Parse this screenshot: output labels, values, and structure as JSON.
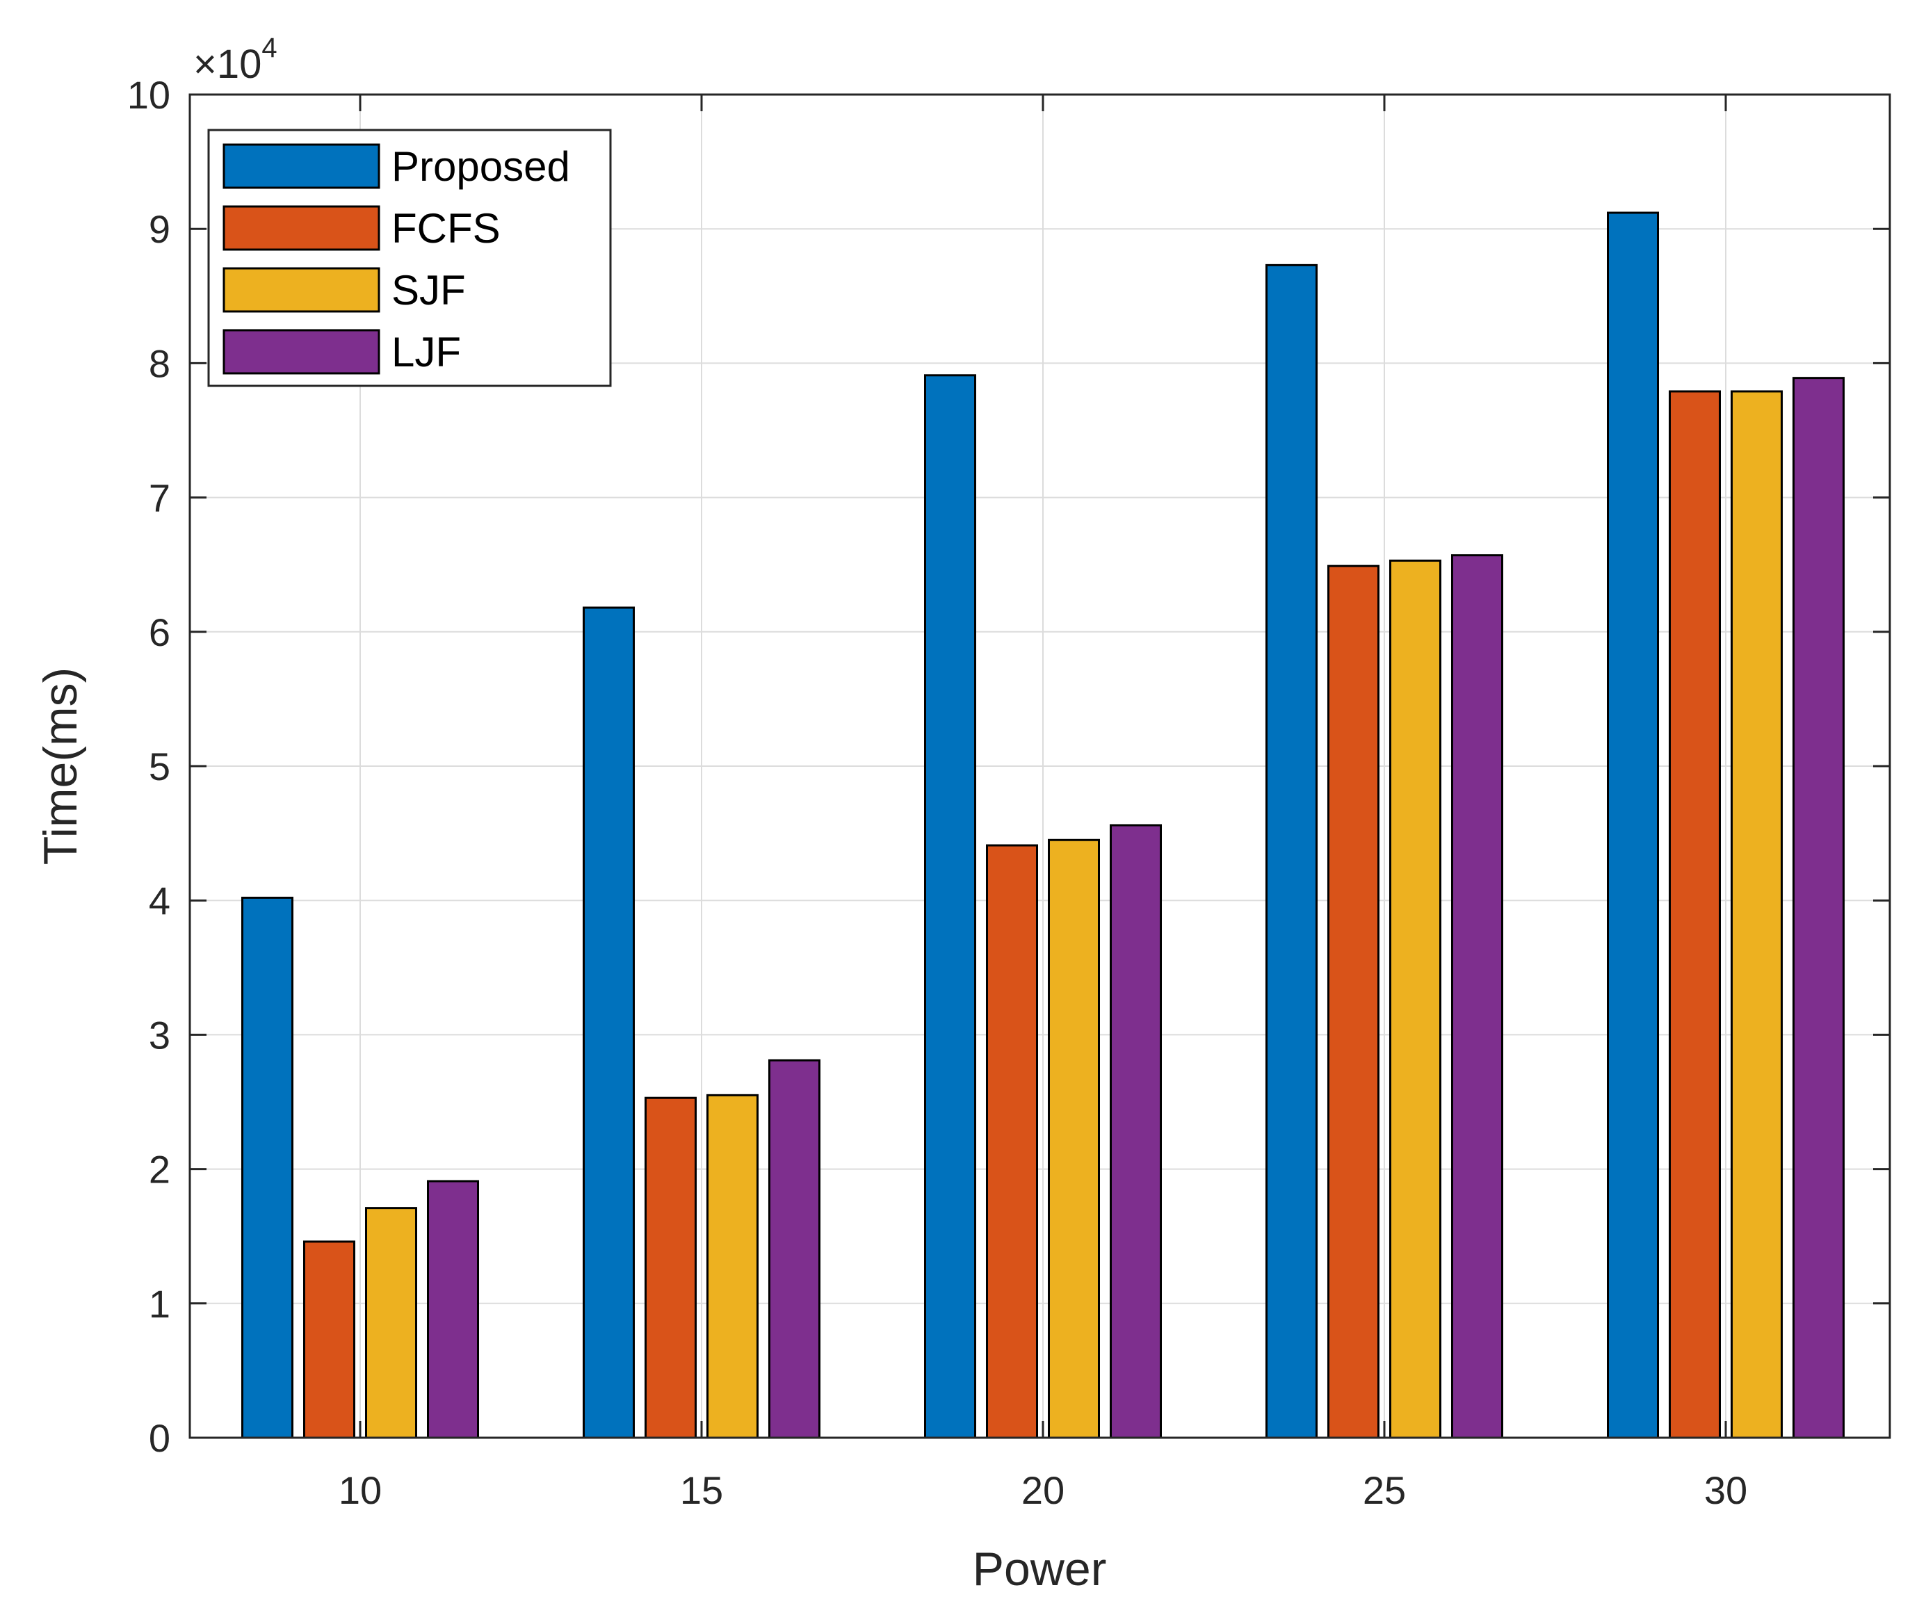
{
  "chart_data": {
    "type": "bar",
    "title": "",
    "xlabel": "Power",
    "ylabel": "Time(ms)",
    "y_multiplier_base": "×10",
    "y_multiplier_exponent": "4",
    "categories": [
      "10",
      "15",
      "20",
      "25",
      "30"
    ],
    "ylim": [
      0,
      10
    ],
    "yticks": [
      "0",
      "1",
      "2",
      "3",
      "4",
      "5",
      "6",
      "7",
      "8",
      "9",
      "10"
    ],
    "grid": true,
    "legend_position": "top-left",
    "series": [
      {
        "name": "Proposed",
        "color": "#0072BD",
        "values": [
          4.02,
          6.18,
          7.91,
          8.73,
          9.12
        ]
      },
      {
        "name": "FCFS",
        "color": "#D95319",
        "values": [
          1.46,
          2.53,
          4.41,
          6.49,
          7.79
        ]
      },
      {
        "name": "SJF",
        "color": "#EDB120",
        "values": [
          1.71,
          2.55,
          4.45,
          6.53,
          7.79
        ]
      },
      {
        "name": "LJF",
        "color": "#7E2F8E",
        "values": [
          1.91,
          2.81,
          4.56,
          6.57,
          7.89
        ]
      }
    ]
  }
}
